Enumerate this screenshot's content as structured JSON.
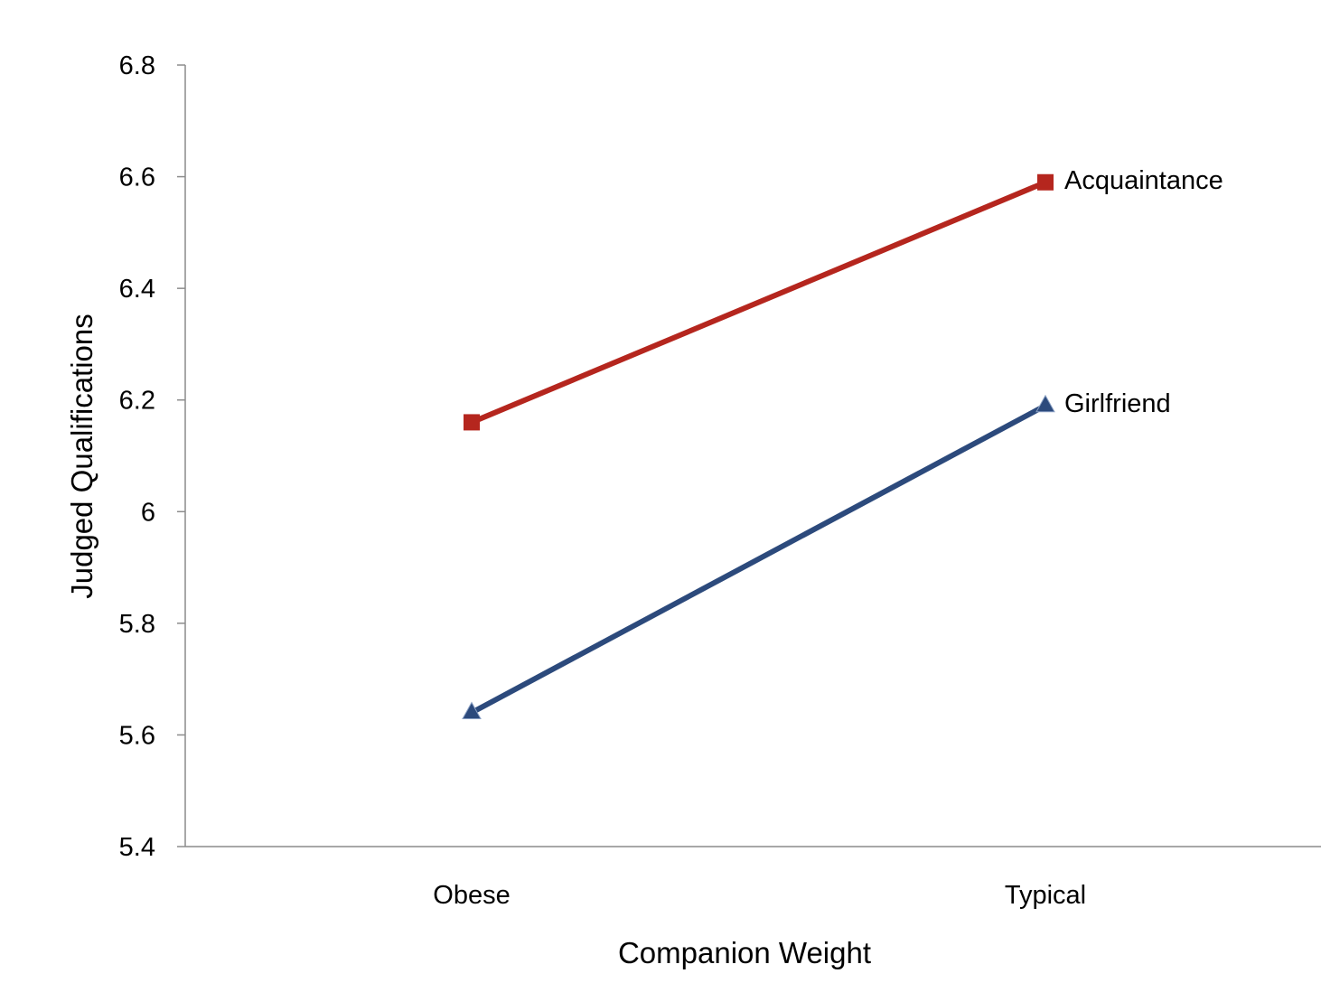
{
  "chart_data": {
    "type": "line",
    "title": "",
    "xlabel": "Companion Weight",
    "ylabel": "Judged Qualifications",
    "categories": [
      "Obese",
      "Typical"
    ],
    "ylim": [
      5.4,
      6.8
    ],
    "yticks": [
      "5.4",
      "5.6",
      "5.8",
      "6",
      "6.2",
      "6.4",
      "6.6",
      "6.8"
    ],
    "grid": false,
    "legend": "inline-right",
    "series": [
      {
        "name": "Acquaintance",
        "values": [
          6.16,
          6.59
        ],
        "color": "#b5261e",
        "marker": "square"
      },
      {
        "name": "Girlfriend",
        "values": [
          5.64,
          6.19
        ],
        "color": "#2c4a7c",
        "marker": "triangle"
      }
    ]
  }
}
